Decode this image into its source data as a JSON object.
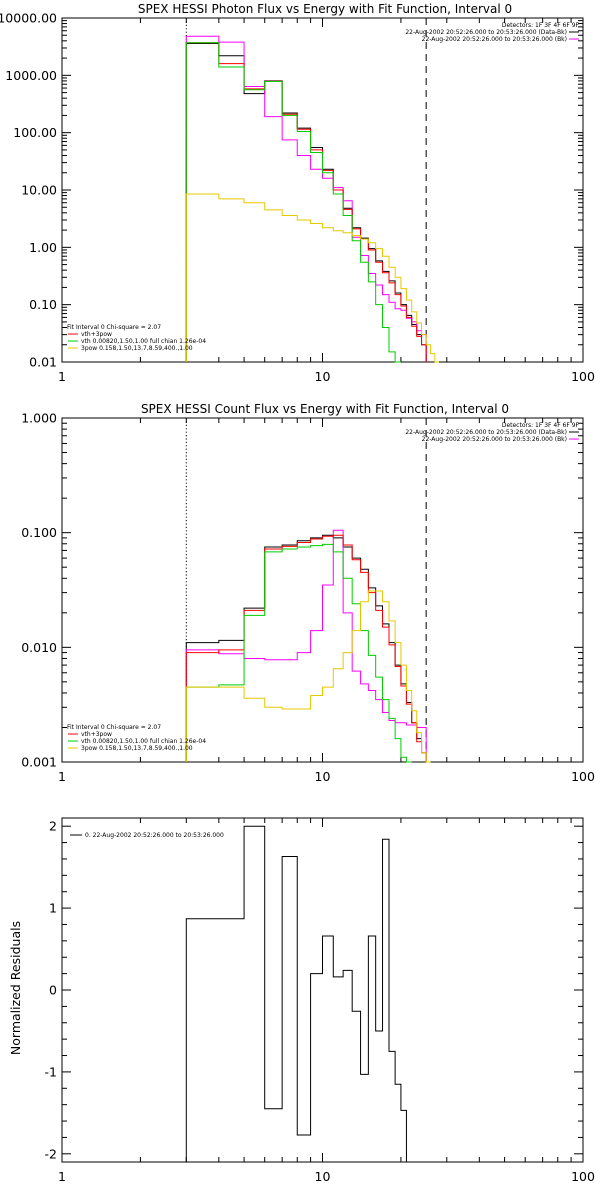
{
  "chart_data": [
    {
      "type": "line",
      "title": "SPEX HESSI Photon Flux vs Energy with Fit Function, Interval 0",
      "xscale": "log",
      "yscale": "log",
      "xlim": [
        1,
        100
      ],
      "ylim": [
        0.01,
        10000
      ],
      "xticks": [
        "1",
        "10",
        "100"
      ],
      "yticks": [
        "0.01",
        "0.10",
        "1.00",
        "10.00",
        "100.00",
        "1000.00",
        "10000.00"
      ],
      "legend_header": [
        "Detectors: 1F 3F 4F 6F 9F",
        "22-Aug-2002 20:52:26.000 to 20:53:26.000 (Data-Bk)",
        "22-Aug-2002 20:52:26.000 to 20:53:26.000 (Bk)"
      ],
      "fit_legend": [
        "Fit Interval 0   Chi-square = 2.07",
        "vth+3pow",
        "vth 0.00820,1.50,1.00  full chian 1.26e-04",
        "3pow 0.158,1.50,13.7,8.59,400.,1.00"
      ],
      "vlines": [
        {
          "x": 3,
          "style": "dotted"
        },
        {
          "x": 25,
          "style": "dashed"
        }
      ],
      "edges": [
        3,
        4,
        5,
        6,
        7,
        8,
        9,
        10,
        11,
        12,
        13,
        14,
        15,
        16,
        17,
        18,
        19,
        20,
        21,
        22,
        23,
        24,
        25,
        26,
        27,
        28
      ],
      "series": [
        {
          "color": "#000000",
          "values": [
            3600,
            2200,
            480,
            800,
            220,
            120,
            55,
            23,
            10,
            4.8,
            2.2,
            1.45,
            0.95,
            0.58,
            0.38,
            0.26,
            0.16,
            0.1,
            0.065,
            0.045,
            0.03,
            0.02
          ]
        },
        {
          "color": "#ff00ff",
          "values": [
            4800,
            3800,
            640,
            190,
            75,
            40,
            23,
            16,
            11,
            6.5,
            1.5,
            0.72,
            0.35,
            0.22,
            0.15,
            0.11,
            0.085,
            0.08,
            0.058,
            0.05,
            0.035,
            0.03
          ]
        },
        {
          "color": "#ff0000",
          "values": [
            3700,
            1600,
            580,
            790,
            210,
            115,
            50,
            22,
            10,
            4.6,
            2.1,
            1.4,
            0.9,
            0.55,
            0.36,
            0.24,
            0.15,
            0.095,
            0.06,
            0.042,
            0.028,
            0.02
          ]
        },
        {
          "color": "#00cc00",
          "values": [
            3700,
            1400,
            560,
            780,
            200,
            105,
            45,
            20,
            8.5,
            3.6,
            1.3,
            0.55,
            0.25,
            0.1,
            0.04,
            0.015,
            0.009
          ]
        },
        {
          "color": "#e6c800",
          "values": [
            8.5,
            7,
            6,
            4.5,
            3.6,
            3,
            2.6,
            2.2,
            1.95,
            1.8,
            1.6,
            1.4,
            1.2,
            0.95,
            0.7,
            0.45,
            0.3,
            0.19,
            0.12,
            0.075,
            0.048,
            0.03,
            0.02,
            0.014,
            0.01
          ]
        }
      ]
    },
    {
      "type": "line",
      "title": "SPEX HESSI Count Flux vs Energy with Fit Function, Interval 0",
      "xscale": "log",
      "yscale": "log",
      "xlim": [
        1,
        100
      ],
      "ylim": [
        0.001,
        1.0
      ],
      "xticks": [
        "1",
        "10",
        "100"
      ],
      "yticks": [
        "0.001",
        "0.010",
        "0.100",
        "1.000"
      ],
      "legend_header": [
        "Detectors: 1F 3F 4F 6F 9F",
        "22-Aug-2002 20:52:26.000 to 20:53:26.000 (Data-Bk)",
        "22-Aug-2002 20:52:26.000 to 20:53:26.000 (Bk)"
      ],
      "fit_legend": [
        "Fit Interval 0   Chi-square = 2.07",
        "vth+3pow",
        "vth 0.00820,1.50,1.00  full chian 1.26e-04",
        "3pow 0.158,1.50,13.7,8.59,400.,1.00"
      ],
      "vlines": [
        {
          "x": 3,
          "style": "dotted"
        },
        {
          "x": 25,
          "style": "dashed"
        }
      ],
      "edges": [
        3,
        4,
        5,
        6,
        7,
        8,
        9,
        10,
        11,
        12,
        13,
        14,
        15,
        16,
        17,
        18,
        19,
        20,
        21,
        22,
        23,
        24,
        25,
        26,
        27,
        28
      ],
      "series": [
        {
          "color": "#000000",
          "values": [
            0.011,
            0.0115,
            0.022,
            0.075,
            0.078,
            0.085,
            0.09,
            0.095,
            0.09,
            0.075,
            0.06,
            0.048,
            0.033,
            0.023,
            0.016,
            0.011,
            0.007,
            0.0048,
            0.0033,
            0.0022,
            0.0016,
            0.0012
          ]
        },
        {
          "color": "#ff00ff",
          "values": [
            0.0095,
            0.0088,
            0.008,
            0.0078,
            0.0078,
            0.009,
            0.014,
            0.035,
            0.105,
            0.02,
            0.0062,
            0.0048,
            0.0042,
            0.0035,
            0.0027,
            0.0023,
            0.0022,
            0.0022,
            0.0021,
            0.0021,
            0.002,
            0.002
          ]
        },
        {
          "color": "#ff0000",
          "values": [
            0.009,
            0.0095,
            0.021,
            0.072,
            0.076,
            0.082,
            0.088,
            0.093,
            0.095,
            0.078,
            0.058,
            0.045,
            0.03,
            0.021,
            0.015,
            0.0105,
            0.0068,
            0.0046,
            0.0032,
            0.0022,
            0.0015,
            0.0012
          ]
        },
        {
          "color": "#00cc00",
          "values": [
            0.0045,
            0.0047,
            0.019,
            0.068,
            0.072,
            0.075,
            0.077,
            0.079,
            0.068,
            0.04,
            0.024,
            0.014,
            0.0085,
            0.0055,
            0.0035,
            0.0024,
            0.0016,
            0.0011,
            0.001
          ]
        },
        {
          "color": "#e6c800",
          "values": [
            0.0045,
            0.0045,
            0.0036,
            0.003,
            0.0029,
            0.0029,
            0.0038,
            0.0045,
            0.0065,
            0.009,
            0.014,
            0.025,
            0.031,
            0.031,
            0.025,
            0.017,
            0.011,
            0.007,
            0.0042,
            0.0028,
            0.0018,
            0.0012,
            0.001
          ]
        }
      ]
    },
    {
      "type": "line",
      "title": "",
      "xscale": "log",
      "yscale": "linear",
      "xlim": [
        1,
        100
      ],
      "ylim": [
        -2.1,
        2.1
      ],
      "xticks": [
        "1",
        "10",
        "100"
      ],
      "yticks": [
        "-2",
        "-1",
        "0",
        "1",
        "2"
      ],
      "ylabel": "Normalized Residuals",
      "legend_header": [],
      "legend_entry": "0. 22-Aug-2002 20:52:26.000 to 20:53:26.000",
      "vlines": [],
      "edges": [
        3,
        4,
        5,
        6,
        7,
        8,
        9,
        10,
        11,
        12,
        13,
        14,
        15,
        16,
        17,
        18,
        19,
        20,
        21,
        22,
        23,
        24,
        25
      ],
      "series": [
        {
          "color": "#000000",
          "values": [
            0.87,
            0.87,
            2.0,
            -1.45,
            1.63,
            -1.77,
            0.2,
            0.66,
            0.16,
            0.24,
            -0.26,
            -1.03,
            0.66,
            -0.5,
            1.84,
            -0.75,
            -1.15,
            -1.47
          ]
        }
      ]
    }
  ]
}
